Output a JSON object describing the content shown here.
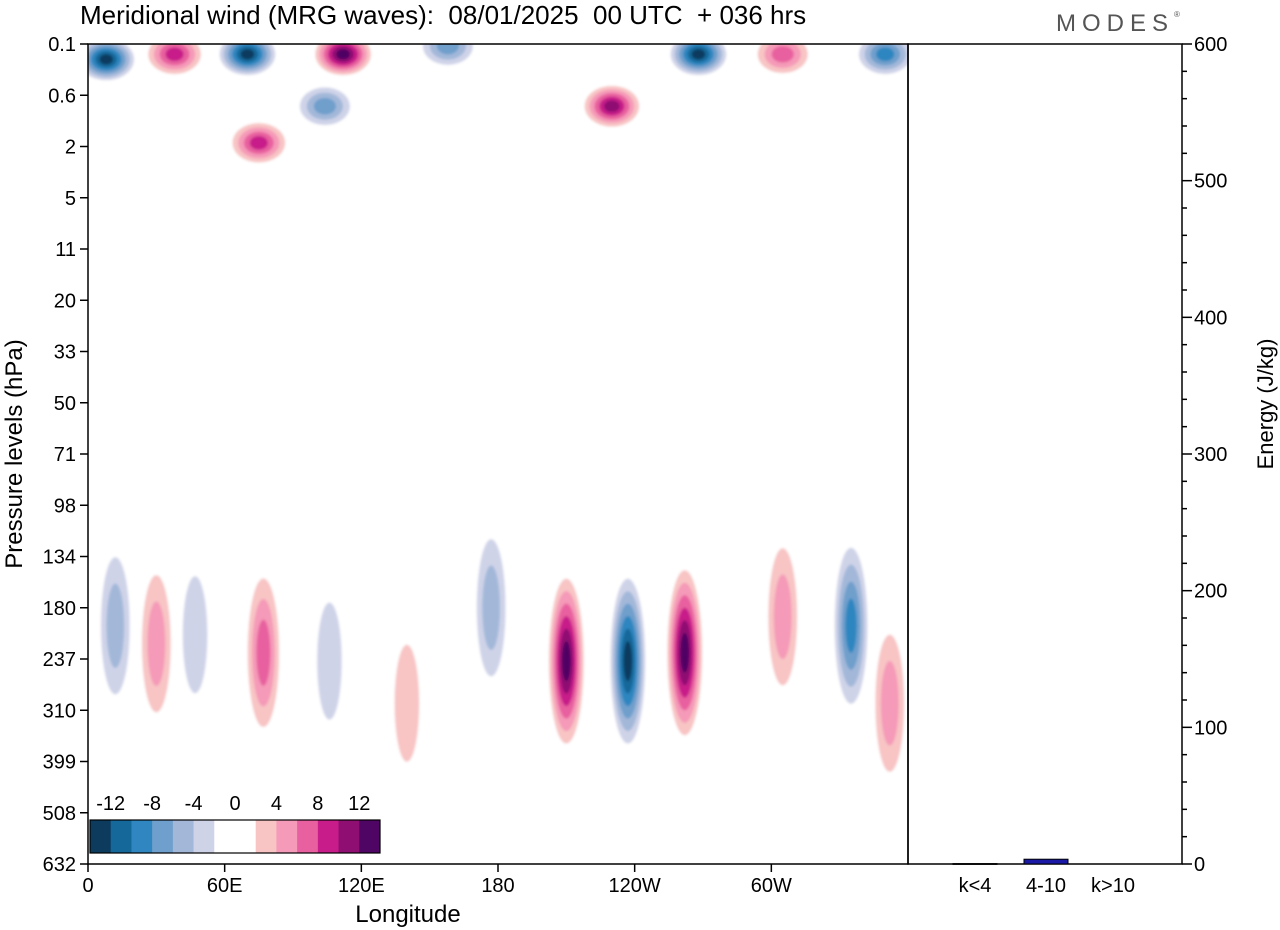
{
  "title": "Meridional wind (MRG waves):  08/01/2025  00 UTC  + 036 hrs",
  "brand": "MODES",
  "brand_mark": "®",
  "chart_data": [
    {
      "type": "heatmap",
      "title": "Meridional wind (MRG waves):  08/01/2025  00 UTC  + 036 hrs",
      "xlabel": "Longitude",
      "ylabel": "Pressure levels (hPa)",
      "x_ticks": [
        "0",
        "60E",
        "120E",
        "180",
        "120W",
        "60W"
      ],
      "x_tick_degrees": [
        0,
        60,
        120,
        180,
        240,
        300
      ],
      "xlim": [
        0,
        360
      ],
      "y_ticks": [
        "0.1",
        "0.6",
        "2",
        "5",
        "11",
        "20",
        "33",
        "50",
        "71",
        "98",
        "134",
        "180",
        "237",
        "310",
        "399",
        "508",
        "632"
      ],
      "colorbar": {
        "labels": [
          "-12",
          "-8",
          "-4",
          "0",
          "4",
          "8",
          "12"
        ],
        "colors": [
          "#0d3b5e",
          "#14689a",
          "#2f86c0",
          "#6f9fcc",
          "#a3b8d9",
          "#cfd3e8",
          "#ffffff",
          "#ffffff",
          "#f8c4c4",
          "#f59ab8",
          "#e8609f",
          "#c71c89",
          "#8f0e72",
          "#4f0564"
        ]
      },
      "features": [
        {
          "lon": 8,
          "level": 0.25,
          "value": -14
        },
        {
          "lon": 38,
          "level": 0.2,
          "value": 10
        },
        {
          "lon": 70,
          "level": 0.2,
          "value": -14
        },
        {
          "lon": 112,
          "level": 0.2,
          "value": 14
        },
        {
          "lon": 75,
          "level": 1.9,
          "value": 10
        },
        {
          "lon": 104,
          "level": 0.9,
          "value": -8
        },
        {
          "lon": 158,
          "level": 0.12,
          "value": -8
        },
        {
          "lon": 230,
          "level": 0.9,
          "value": 13
        },
        {
          "lon": 268,
          "level": 0.2,
          "value": -14
        },
        {
          "lon": 305,
          "level": 0.2,
          "value": 9
        },
        {
          "lon": 350,
          "level": 0.2,
          "value": -10
        },
        {
          "lon": 12,
          "level": 200,
          "value": -7
        },
        {
          "lon": 30,
          "level": 220,
          "value": 6
        },
        {
          "lon": 47,
          "level": 210,
          "value": -5
        },
        {
          "lon": 77,
          "level": 230,
          "value": 9
        },
        {
          "lon": 106,
          "level": 240,
          "value": -4
        },
        {
          "lon": 140,
          "level": 300,
          "value": 4
        },
        {
          "lon": 177,
          "level": 180,
          "value": -7
        },
        {
          "lon": 210,
          "level": 240,
          "value": 14
        },
        {
          "lon": 237,
          "level": 240,
          "value": -14
        },
        {
          "lon": 262,
          "level": 230,
          "value": 14
        },
        {
          "lon": 305,
          "level": 190,
          "value": 6
        },
        {
          "lon": 335,
          "level": 200,
          "value": -11
        },
        {
          "lon": 352,
          "level": 300,
          "value": 6
        }
      ]
    },
    {
      "type": "bar",
      "categories": [
        "k<4",
        "4-10",
        "k>10"
      ],
      "values": [
        0.3,
        3.5,
        0
      ],
      "ylabel": "Energy (J/kg)",
      "ylim": [
        0,
        600
      ],
      "y_ticks": [
        "0",
        "100",
        "200",
        "300",
        "400",
        "500",
        "600"
      ],
      "bar_color": "#1a1aa6"
    }
  ]
}
